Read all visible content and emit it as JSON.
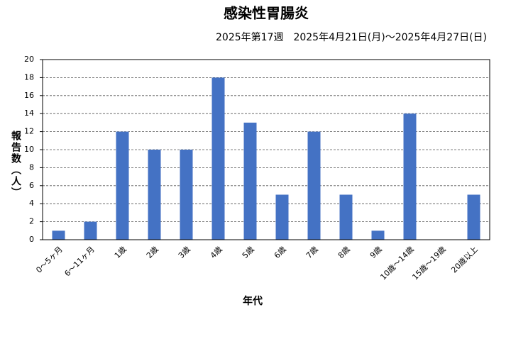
{
  "chart_data": {
    "type": "bar",
    "title": "感染性胃腸炎",
    "subtitle": "2025年第17週　2025年4月21日(月)～2025年4月27日(日)",
    "x_label": "年代",
    "y_label": "報告数（人）",
    "categories": [
      "0～5ヶ月",
      "6～11ヶ月",
      "1歳",
      "2歳",
      "3歳",
      "4歳",
      "5歳",
      "6歳",
      "7歳",
      "8歳",
      "9歳",
      "10歳～14歳",
      "15歳～19歳",
      "20歳以上"
    ],
    "values": [
      1,
      2,
      12,
      10,
      10,
      18,
      13,
      5,
      12,
      5,
      1,
      14,
      0,
      5
    ],
    "color": "#4472c4",
    "ylim": [
      0,
      20
    ],
    "yticks": [
      0,
      2,
      4,
      6,
      8,
      10,
      12,
      14,
      16,
      18,
      20
    ],
    "grid": true
  }
}
